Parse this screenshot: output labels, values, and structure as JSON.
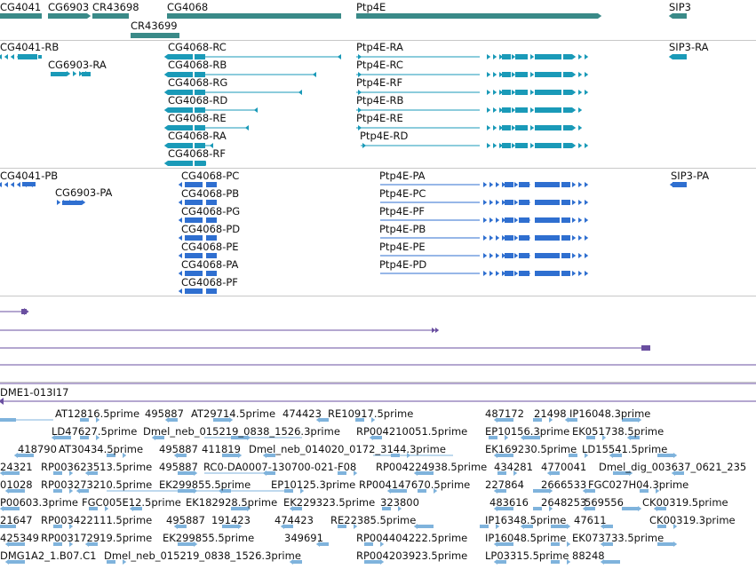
{
  "colors": {
    "gene": "#3a8a88",
    "transcript": "#1a9ab8",
    "protein": "#2f6fd0",
    "assembly": "#6a4fa0",
    "est": "#7fb3dc",
    "separator": "#c8c8c8"
  },
  "genes": [
    {
      "label": "CG4041"
    },
    {
      "label": "CG6903"
    },
    {
      "label": "CR43698"
    },
    {
      "label": "CG4068"
    },
    {
      "label": "Ptp4E"
    },
    {
      "label": "SIP3"
    },
    {
      "label": "CR43699"
    }
  ],
  "transcripts": [
    {
      "label": "CG4041-RB"
    },
    {
      "label": "CG6903-RA"
    },
    {
      "label": "CG4068-RC"
    },
    {
      "label": "CG4068-RB"
    },
    {
      "label": "CG4068-RG"
    },
    {
      "label": "CG4068-RD"
    },
    {
      "label": "CG4068-RE"
    },
    {
      "label": "CG4068-RA"
    },
    {
      "label": "CG4068-RF"
    },
    {
      "label": "Ptp4E-RA"
    },
    {
      "label": "Ptp4E-RC"
    },
    {
      "label": "Ptp4E-RF"
    },
    {
      "label": "Ptp4E-RB"
    },
    {
      "label": "Ptp4E-RE"
    },
    {
      "label": "Ptp4E-RD"
    },
    {
      "label": "SIP3-RA"
    }
  ],
  "proteins": [
    {
      "label": "CG4041-PB"
    },
    {
      "label": "CG6903-PA"
    },
    {
      "label": "CG4068-PC"
    },
    {
      "label": "CG4068-PB"
    },
    {
      "label": "CG4068-PG"
    },
    {
      "label": "CG4068-PD"
    },
    {
      "label": "CG4068-PE"
    },
    {
      "label": "CG4068-PA"
    },
    {
      "label": "CG4068-PF"
    },
    {
      "label": "Ptp4E-PA"
    },
    {
      "label": "Ptp4E-PC"
    },
    {
      "label": "Ptp4E-PF"
    },
    {
      "label": "Ptp4E-PB"
    },
    {
      "label": "Ptp4E-PE"
    },
    {
      "label": "Ptp4E-PD"
    },
    {
      "label": "SIP3-PA"
    }
  ],
  "assembly_label": "DME1-013I17",
  "ests": [
    {
      "label": "AT12816.5prime"
    },
    {
      "label": "495887"
    },
    {
      "label": "AT29714.5prime"
    },
    {
      "label": "474423"
    },
    {
      "label": "RE10917.5prime"
    },
    {
      "label": "487172"
    },
    {
      "label": "21498"
    },
    {
      "label": "IP16048.3prime"
    },
    {
      "label": "LD47627.5prime"
    },
    {
      "label": "Dmel_neb_015219_0838_1526.3prime"
    },
    {
      "label": "RP004210051.5prime"
    },
    {
      "label": "EP10156.3prime"
    },
    {
      "label": "EK051738.5prime"
    },
    {
      "label": "418790"
    },
    {
      "label": "AT30434.5prime"
    },
    {
      "label": "495887"
    },
    {
      "label": "411819"
    },
    {
      "label": "Dmel_neb_014020_0172_3144.3prime"
    },
    {
      "label": "EK169230.5prime"
    },
    {
      "label": "LD15541.5prime"
    },
    {
      "label": "24321"
    },
    {
      "label": "RP003623513.5prime"
    },
    {
      "label": "495887"
    },
    {
      "label": "RC0-DA0007-130700-021-F08"
    },
    {
      "label": "RP004224938.5prime"
    },
    {
      "label": "434281"
    },
    {
      "label": "4770041"
    },
    {
      "label": "Dmel_dig_003637_0621_235"
    },
    {
      "label": "01028"
    },
    {
      "label": "RP003273210.5prime"
    },
    {
      "label": "EK299855.5prime"
    },
    {
      "label": "EP10125.3prime"
    },
    {
      "label": "RP004147670.5prime"
    },
    {
      "label": "227864"
    },
    {
      "label": "2666533"
    },
    {
      "label": "FGC027H04.3prime"
    },
    {
      "label": "P00603.3prime"
    },
    {
      "label": "FGC005E12.5prime"
    },
    {
      "label": "EK182928.5prime"
    },
    {
      "label": "EK229323.5prime"
    },
    {
      "label": "323800"
    },
    {
      "label": "483616"
    },
    {
      "label": "2648253"
    },
    {
      "label": "569556"
    },
    {
      "label": "CK00319.5prime"
    },
    {
      "label": "21647"
    },
    {
      "label": "RP003422111.5prime"
    },
    {
      "label": "495887"
    },
    {
      "label": "191423"
    },
    {
      "label": "474423"
    },
    {
      "label": "RE22385.5prime"
    },
    {
      "label": "IP16348.5prime"
    },
    {
      "label": "47611"
    },
    {
      "label": "CK00319.3prime"
    },
    {
      "label": "425349"
    },
    {
      "label": "RP003172919.5prime"
    },
    {
      "label": "EK299855.5prime"
    },
    {
      "label": "349691"
    },
    {
      "label": "RP004404222.5prime"
    },
    {
      "label": "IP16048.5prime"
    },
    {
      "label": "EK073733.5prime"
    },
    {
      "label": "DMG1A2_1.B07.C1"
    },
    {
      "label": "Dmel_neb_015219_0838_1526.3prime"
    },
    {
      "label": "RP004203923.5prime"
    },
    {
      "label": "LP03315.5prime"
    },
    {
      "label": "88248"
    }
  ]
}
